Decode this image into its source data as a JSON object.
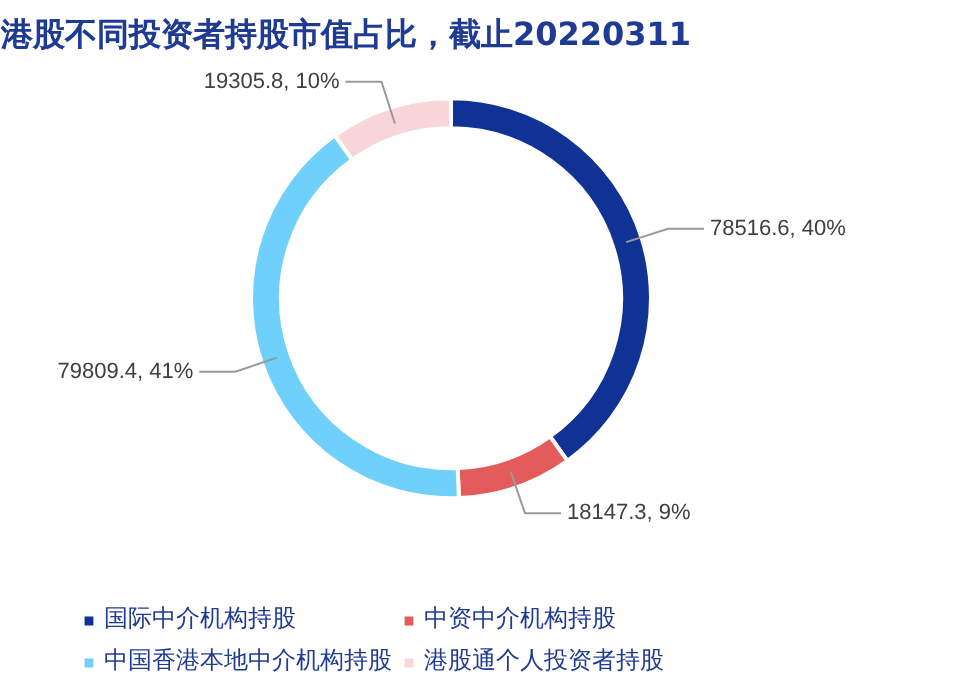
{
  "chart_data": {
    "type": "donut",
    "title": "港股不同投资者持股市值占比，截止20220311",
    "categories": [
      "国际中介机构持股",
      "中资中介机构持股",
      "中国香港本地中介机构持股",
      "港股通个人投资者持股"
    ],
    "values": [
      78516.6,
      18147.3,
      79809.4,
      19305.8
    ],
    "colors": [
      "#0f3294",
      "#e35b5b",
      "#6fd0fb",
      "#f8d5d8"
    ],
    "value_labels": [
      "78516.6, 40%",
      "18147.3, 9%",
      "79809.4, 41%",
      "19305.8, 10%"
    ],
    "legend": "bottom"
  }
}
